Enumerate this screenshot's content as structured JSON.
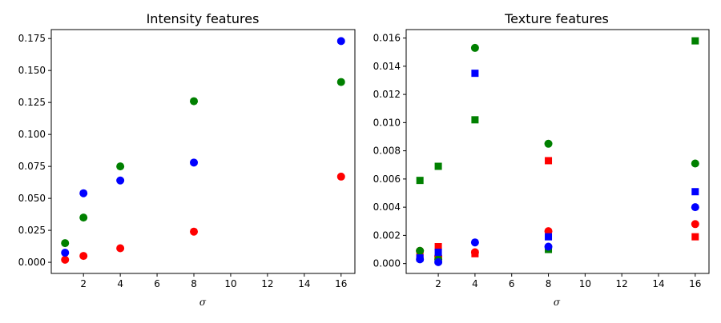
{
  "chart_data": [
    {
      "type": "scatter",
      "title": "Intensity features",
      "xlabel": "σ",
      "ylabel": "",
      "xlim": [
        0.25,
        16.75
      ],
      "ylim": [
        -0.0087,
        0.182
      ],
      "xticks": [
        2,
        4,
        6,
        8,
        10,
        12,
        14,
        16
      ],
      "xtick_labels": [
        "2",
        "4",
        "6",
        "8",
        "10",
        "12",
        "14",
        "16"
      ],
      "yticks": [
        0,
        0.025,
        0.05,
        0.075,
        0.1,
        0.125,
        0.15,
        0.175
      ],
      "ytick_labels": [
        "0.000",
        "0.025",
        "0.050",
        "0.075",
        "0.100",
        "0.125",
        "0.150",
        "0.175"
      ],
      "grid": false,
      "series": [
        {
          "color": "#ff0000",
          "marker": "circle",
          "points": [
            [
              1,
              0.002
            ],
            [
              2,
              0.005
            ],
            [
              4,
              0.011
            ],
            [
              8,
              0.024
            ],
            [
              16,
              0.067
            ]
          ]
        },
        {
          "color": "#008000",
          "marker": "circle",
          "points": [
            [
              1,
              0.015
            ],
            [
              2,
              0.035
            ],
            [
              4,
              0.075
            ],
            [
              8,
              0.126
            ],
            [
              16,
              0.141
            ]
          ]
        },
        {
          "color": "#0000ff",
          "marker": "circle",
          "points": [
            [
              1,
              0.0075
            ],
            [
              2,
              0.054
            ],
            [
              4,
              0.064
            ],
            [
              8,
              0.078
            ],
            [
              16,
              0.173
            ]
          ]
        }
      ]
    },
    {
      "type": "scatter",
      "title": "Texture features",
      "xlabel": "σ",
      "ylabel": "",
      "xlim": [
        0.25,
        16.75
      ],
      "ylim": [
        -0.0007,
        0.0166
      ],
      "xticks": [
        2,
        4,
        6,
        8,
        10,
        12,
        14,
        16
      ],
      "xtick_labels": [
        "2",
        "4",
        "6",
        "8",
        "10",
        "12",
        "14",
        "16"
      ],
      "yticks": [
        0,
        0.002,
        0.004,
        0.006,
        0.008,
        0.01,
        0.012,
        0.014,
        0.016
      ],
      "ytick_labels": [
        "0.000",
        "0.002",
        "0.004",
        "0.006",
        "0.008",
        "0.010",
        "0.012",
        "0.014",
        "0.016"
      ],
      "grid": false,
      "series": [
        {
          "color": "#ff0000",
          "marker": "circle",
          "points": [
            [
              1,
              0.0009
            ],
            [
              2,
              0.0005
            ],
            [
              4,
              0.0008
            ],
            [
              8,
              0.0023
            ],
            [
              16,
              0.0028
            ]
          ]
        },
        {
          "color": "#ff0000",
          "marker": "square",
          "points": [
            [
              1,
              0.0006
            ],
            [
              2,
              0.0012
            ],
            [
              4,
              0.0007
            ],
            [
              8,
              0.0073
            ],
            [
              16,
              0.0019
            ]
          ]
        },
        {
          "color": "#008000",
          "marker": "circle",
          "points": [
            [
              1,
              0.0009
            ],
            [
              2,
              0.0003
            ],
            [
              4,
              0.0153
            ],
            [
              8,
              0.0085
            ],
            [
              16,
              0.0071
            ]
          ]
        },
        {
          "color": "#008000",
          "marker": "square",
          "points": [
            [
              1,
              0.0059
            ],
            [
              2,
              0.0069
            ],
            [
              4,
              0.0102
            ],
            [
              8,
              0.001
            ],
            [
              16,
              0.0158
            ]
          ]
        },
        {
          "color": "#0000ff",
          "marker": "circle",
          "points": [
            [
              1,
              0.0003
            ],
            [
              2,
              0.0001
            ],
            [
              4,
              0.0015
            ],
            [
              8,
              0.0012
            ],
            [
              16,
              0.004
            ]
          ]
        },
        {
          "color": "#0000ff",
          "marker": "square",
          "points": [
            [
              1,
              0.0004
            ],
            [
              2,
              0.0008
            ],
            [
              4,
              0.0135
            ],
            [
              8,
              0.0019
            ],
            [
              16,
              0.0051
            ]
          ]
        }
      ]
    }
  ]
}
